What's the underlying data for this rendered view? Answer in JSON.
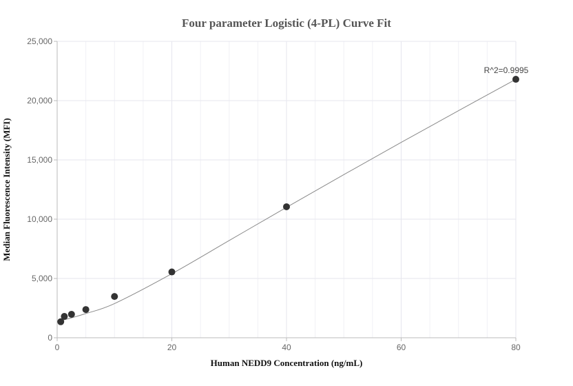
{
  "chart_data": {
    "type": "scatter",
    "title": "Four parameter Logistic (4-PL) Curve Fit",
    "xlabel": "Human NEDD9 Concentration (ng/mL)",
    "ylabel": "Median Fluorescence Intensity (MFI)",
    "xlim": [
      0,
      80
    ],
    "ylim": [
      0,
      25000
    ],
    "x_ticks": [
      0,
      20,
      40,
      60,
      80
    ],
    "x_tick_labels": [
      "0",
      "20",
      "40",
      "60",
      "80"
    ],
    "y_ticks": [
      0,
      5000,
      10000,
      15000,
      20000,
      25000
    ],
    "y_tick_labels": [
      "0",
      "5,000",
      "10,000",
      "15,000",
      "20,000",
      "25,000"
    ],
    "grid": true,
    "points": {
      "x": [
        0.625,
        1.25,
        2.5,
        5,
        10,
        20,
        40,
        80
      ],
      "y": [
        1350,
        1800,
        1980,
        2380,
        3480,
        5550,
        11050,
        21800
      ]
    },
    "fit_curve": {
      "x": [
        0,
        0.625,
        1.25,
        2.5,
        5,
        10,
        20,
        30,
        40,
        50,
        60,
        70,
        80
      ],
      "y": [
        1370,
        1440,
        1520,
        1680,
        2040,
        2880,
        5400,
        8200,
        11000,
        13760,
        16480,
        19150,
        21800
      ]
    },
    "annotation": "R^2=0.9995",
    "colors": {
      "point": "#333333",
      "curve": "#888888",
      "grid": "#e6e6ee",
      "axis": "#bbbbbb"
    }
  }
}
